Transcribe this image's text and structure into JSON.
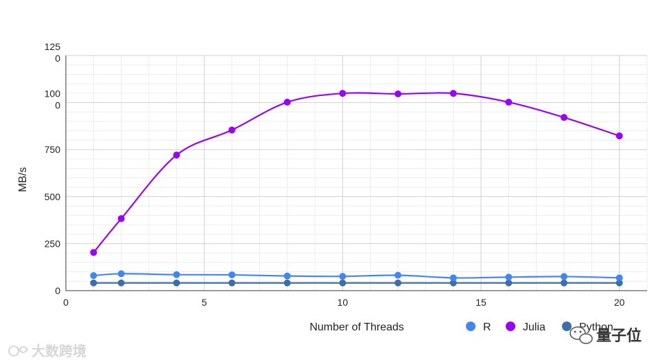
{
  "chart_data": {
    "type": "line",
    "xlabel": "Number of Threads",
    "ylabel": "MB/s",
    "xlim": [
      0,
      21
    ],
    "ylim": [
      0,
      1250
    ],
    "x_ticks": [
      0,
      5,
      10,
      15,
      20
    ],
    "y_ticks": [
      {
        "value": 0,
        "label": [
          "0"
        ]
      },
      {
        "value": 250,
        "label": [
          "250"
        ]
      },
      {
        "value": 500,
        "label": [
          "500"
        ]
      },
      {
        "value": 750,
        "label": [
          "750"
        ]
      },
      {
        "value": 1000,
        "label": [
          "100",
          "0"
        ]
      },
      {
        "value": 1250,
        "label": [
          "125",
          "0"
        ]
      }
    ],
    "grid": true,
    "legend_position": "bottom-right",
    "x": [
      1,
      2,
      4,
      6,
      8,
      10,
      12,
      14,
      16,
      18,
      20
    ],
    "series": [
      {
        "name": "R",
        "color": "#4285f4",
        "values": [
          80,
          90,
          85,
          84,
          78,
          76,
          82,
          68,
          72,
          75,
          68
        ]
      },
      {
        "name": "Julia",
        "color": "#9a00ff",
        "values": [
          203,
          383,
          721,
          854,
          1002,
          1049,
          1046,
          1049,
          1002,
          921,
          823
        ]
      },
      {
        "name": "Python",
        "color": "#3d6fa6",
        "values": [
          41,
          41,
          41,
          41,
          41,
          41,
          41,
          41,
          41,
          41,
          41
        ]
      }
    ]
  },
  "watermarks": {
    "left": "大数跨境",
    "right": "量子位"
  }
}
